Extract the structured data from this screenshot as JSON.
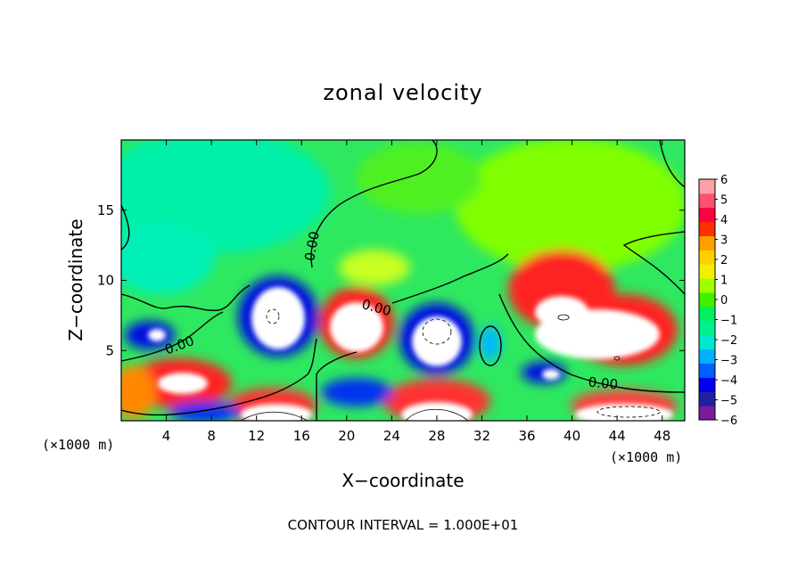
{
  "chart_data": {
    "type": "heatmap",
    "title": "zonal velocity",
    "xlabel": "X−coordinate",
    "ylabel": "Z−coordinate",
    "x_unit_left": "(×1000 m)",
    "x_unit_right": "(×1000 m)",
    "xlim": [
      0,
      50
    ],
    "ylim": [
      0,
      20
    ],
    "xticks": [
      4,
      8,
      12,
      16,
      20,
      24,
      28,
      32,
      36,
      40,
      44,
      48
    ],
    "yticks": [
      5,
      10,
      15
    ],
    "contour_labels": [
      "0.00",
      "0.00",
      "0.00",
      "0.00"
    ],
    "footer": "CONTOUR INTERVAL = 1.000E+01",
    "colorbar": {
      "ticks": [
        "6",
        "5",
        "4",
        "3",
        "2",
        "1",
        "0",
        "−1",
        "−2",
        "−3",
        "−4",
        "−5",
        "−6"
      ],
      "colors": [
        "#7a1a9e",
        "#2020a0",
        "#0000ee",
        "#0060ff",
        "#00b0ff",
        "#00e8d0",
        "#00f090",
        "#00f060",
        "#40f000",
        "#a0ff00",
        "#f0f000",
        "#ffd000",
        "#ffa000",
        "#ff3000",
        "#ff0040",
        "#ff5070",
        "#ffa0a8"
      ]
    }
  }
}
